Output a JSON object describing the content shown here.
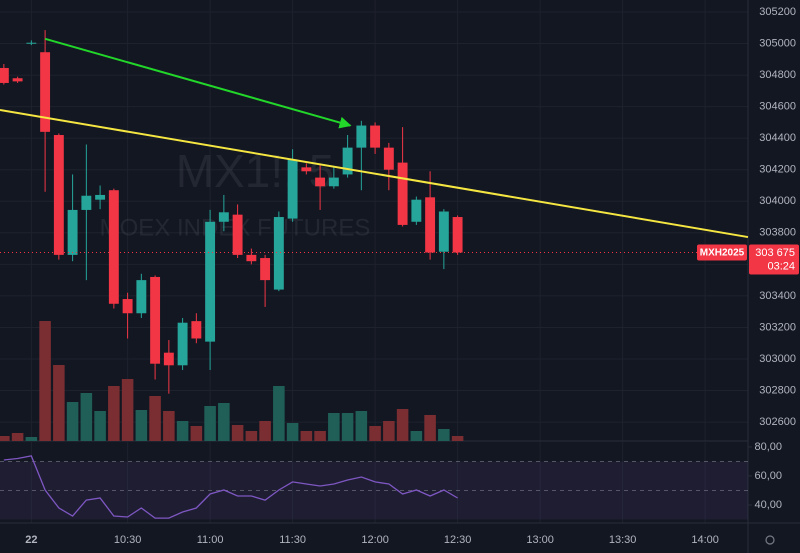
{
  "chart_data": {
    "type": "candlestick",
    "watermark": {
      "title": "MX1!, 5",
      "subtitle": "MOEX INDEX FUTURES"
    },
    "x": [
      -15,
      -10,
      -5,
      0,
      5,
      10,
      15,
      20,
      25,
      30,
      35,
      40,
      45,
      50,
      55,
      60,
      65,
      70,
      75,
      80,
      85,
      90,
      95,
      100,
      105,
      110,
      115,
      120,
      125,
      130,
      135,
      140,
      145,
      150
    ],
    "open": [
      304845,
      304780,
      305000,
      304945,
      304420,
      303660,
      303945,
      304010,
      304070,
      303380,
      303290,
      303520,
      303040,
      302960,
      303240,
      303110,
      303870,
      303915,
      303660,
      303640,
      303440,
      303890,
      304215,
      304150,
      304095,
      304170,
      304340,
      304480,
      304340,
      304245,
      303870,
      304025,
      303680,
      303900
    ],
    "high": [
      304870,
      304790,
      305020,
      305085,
      304430,
      304170,
      304360,
      304100,
      304080,
      303420,
      303540,
      303530,
      303120,
      303260,
      303290,
      303945,
      304040,
      303980,
      303700,
      303660,
      303935,
      304330,
      304240,
      304240,
      304220,
      304420,
      304510,
      304500,
      304370,
      304470,
      304030,
      304190,
      303950,
      303910
    ],
    "low": [
      304740,
      304750,
      304990,
      304060,
      303630,
      303620,
      303500,
      303950,
      303320,
      303130,
      303260,
      302870,
      302780,
      302930,
      303100,
      302930,
      303810,
      303640,
      303600,
      303330,
      303430,
      303870,
      304170,
      303945,
      304080,
      304150,
      304070,
      304300,
      304070,
      303840,
      303850,
      303630,
      303570,
      303660
    ],
    "close": [
      304750,
      304760,
      305005,
      304440,
      303660,
      303945,
      304035,
      304040,
      303350,
      303290,
      303500,
      302970,
      302960,
      303230,
      303130,
      303870,
      303930,
      303660,
      303620,
      303500,
      303900,
      304265,
      304190,
      304095,
      304150,
      304340,
      304480,
      304340,
      304200,
      303850,
      304010,
      303675,
      303935,
      303675
    ],
    "volume": [
      5,
      8,
      4,
      120,
      76,
      39,
      48,
      30,
      55,
      62,
      31,
      45,
      30,
      20,
      15,
      35,
      38,
      16,
      10,
      20,
      55,
      18,
      10,
      10,
      28,
      28,
      30,
      15,
      20,
      32,
      10,
      26,
      12,
      5
    ],
    "volume_lim": [
      0,
      150
    ],
    "colors": {
      "up": "#26a69a",
      "down": "#f23645",
      "volume_up": "#1f5f58",
      "volume_down": "#7a2e31"
    },
    "xlim": [
      -16.4,
      255.6
    ],
    "xticks": [
      {
        "value": -5,
        "label": "22"
      },
      {
        "value": 30,
        "label": "10:30"
      },
      {
        "value": 60,
        "label": "11:00"
      },
      {
        "value": 90,
        "label": "11:30"
      },
      {
        "value": 120,
        "label": "12:00"
      },
      {
        "value": 150,
        "label": "12:30"
      },
      {
        "value": 180,
        "label": "13:00"
      },
      {
        "value": 210,
        "label": "13:30"
      },
      {
        "value": 240,
        "label": "14:00"
      }
    ],
    "ylim": [
      302480,
      305276
    ],
    "yticks": [
      305200,
      305000,
      304800,
      304600,
      304400,
      304200,
      304000,
      303800,
      303600,
      303400,
      303200,
      303000,
      302800,
      302600
    ],
    "grid": true,
    "last_price": {
      "value": 303675,
      "label": "303 675",
      "symbol": "MXH2025",
      "countdown": "03:24"
    },
    "drawings": [
      {
        "kind": "arrow",
        "color": "#22d62a",
        "x": [
          0,
          111
        ],
        "y": [
          305030,
          304480
        ]
      },
      {
        "kind": "line",
        "color": "#f5e642",
        "x": [
          -16.4,
          255.6
        ],
        "y": [
          304579,
          303773
        ]
      }
    ],
    "rsi": {
      "color": "#7e57c2",
      "values": [
        71,
        72,
        73.8,
        50.3,
        37.9,
        32.4,
        43.4,
        44.8,
        32.4,
        31.7,
        37.9,
        31.0,
        31.0,
        35.2,
        37.9,
        47.6,
        50.3,
        46.2,
        46.2,
        43.4,
        50.3,
        55.9,
        54.5,
        53.1,
        54.5,
        57.2,
        59.3,
        55.9,
        54.5,
        47.6,
        50.3,
        46.2,
        50.3,
        44.8
      ],
      "ylim": [
        27.6,
        83.4
      ],
      "yticks": [
        {
          "value": 80,
          "label": "80,00"
        },
        {
          "value": 60,
          "label": "60,00"
        },
        {
          "value": 40,
          "label": "40,00"
        }
      ],
      "band": [
        30,
        70
      ],
      "midline": 50
    }
  }
}
